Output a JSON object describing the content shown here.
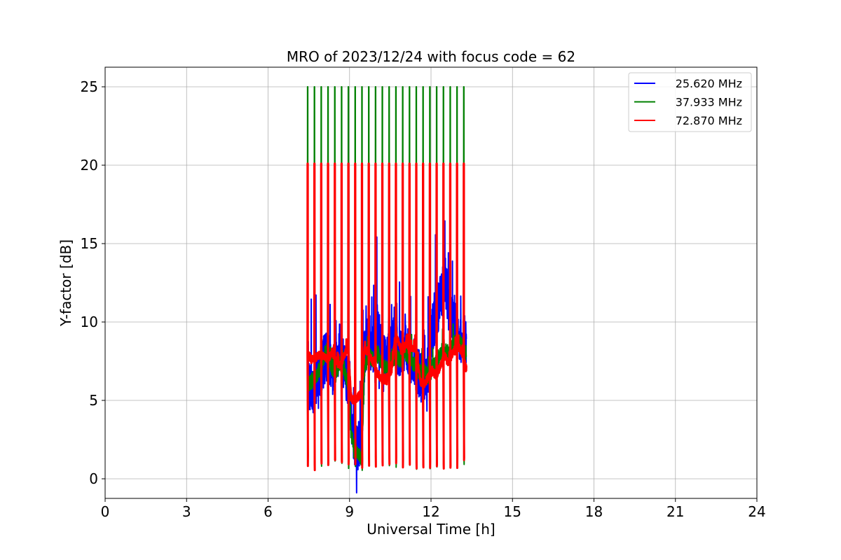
{
  "chart_data": {
    "type": "line",
    "title": "MRO of 2023/12/24 with focus code = 62",
    "xlabel": "Universal Time [h]",
    "ylabel": "Y-factor [dB]",
    "xlim": [
      0,
      24
    ],
    "ylim": [
      -1.25,
      26.25
    ],
    "xticks": [
      0,
      3,
      6,
      9,
      12,
      15,
      18,
      21,
      24
    ],
    "yticks": [
      0,
      5,
      10,
      15,
      20,
      25
    ],
    "grid": true,
    "legend_position": "top-right",
    "calibration": {
      "period_h": 0.25,
      "start_h": 7.45,
      "end_h": 13.3,
      "spike_peak_db": {
        "green": 25.0,
        "red": 20.1
      },
      "dip_db": 1.0
    },
    "series": [
      {
        "name": "25.620 MHz",
        "color": "#0000ff",
        "x": [
          7.45,
          7.5,
          7.6,
          7.75,
          7.9,
          8.0,
          8.2,
          8.35,
          8.5,
          8.65,
          8.8,
          8.95,
          9.05,
          9.15,
          9.3,
          9.45,
          9.55,
          9.7,
          9.85,
          10.0,
          10.2,
          10.4,
          10.55,
          10.7,
          10.9,
          11.1,
          11.3,
          11.45,
          11.6,
          11.75,
          11.9,
          12.05,
          12.2,
          12.35,
          12.5,
          12.65,
          12.8,
          12.95,
          13.1,
          13.3
        ],
        "y": [
          11.0,
          6.0,
          5.5,
          6.2,
          6.8,
          7.2,
          8.0,
          6.5,
          7.5,
          8.5,
          7.2,
          6.0,
          4.5,
          2.5,
          1.8,
          3.0,
          7.5,
          9.0,
          8.0,
          9.8,
          8.0,
          7.5,
          9.5,
          8.5,
          7.8,
          8.5,
          7.5,
          7.2,
          6.5,
          6.5,
          7.0,
          9.5,
          10.5,
          11.5,
          13.0,
          11.0,
          10.0,
          9.5,
          9.0,
          8.5
        ]
      },
      {
        "name": "37.933 MHz",
        "color": "#008000",
        "x": [
          7.45,
          7.6,
          7.75,
          7.9,
          8.05,
          8.2,
          8.35,
          8.5,
          8.65,
          8.8,
          8.95,
          9.05,
          9.15,
          9.3,
          9.45,
          9.55,
          9.7,
          9.85,
          10.0,
          10.2,
          10.4,
          10.55,
          10.7,
          10.9,
          11.1,
          11.3,
          11.45,
          11.6,
          11.75,
          11.9,
          12.05,
          12.2,
          12.35,
          12.5,
          12.65,
          12.8,
          12.95,
          13.1,
          13.3
        ],
        "y": [
          6.0,
          6.2,
          6.5,
          7.0,
          7.8,
          8.3,
          7.0,
          6.5,
          7.5,
          7.0,
          6.0,
          3.0,
          2.2,
          1.5,
          1.3,
          7.0,
          8.0,
          7.5,
          8.0,
          7.2,
          7.0,
          7.5,
          7.8,
          7.5,
          8.0,
          7.5,
          7.0,
          6.8,
          7.0,
          6.5,
          7.0,
          7.5,
          8.0,
          8.5,
          8.0,
          8.5,
          8.8,
          8.5,
          8.0
        ]
      },
      {
        "name": "72.870 MHz",
        "color": "#ff0000",
        "x": [
          7.45,
          7.6,
          7.75,
          7.9,
          8.05,
          8.2,
          8.35,
          8.5,
          8.65,
          8.8,
          8.95,
          9.05,
          9.15,
          9.3,
          9.45,
          9.55,
          9.7,
          9.85,
          10.0,
          10.2,
          10.4,
          10.55,
          10.7,
          10.9,
          11.1,
          11.3,
          11.45,
          11.6,
          11.75,
          11.9,
          12.05,
          12.2,
          12.35,
          12.5,
          12.65,
          12.8,
          12.95,
          13.1,
          13.3
        ],
        "y": [
          8.0,
          7.6,
          7.7,
          7.9,
          7.8,
          7.6,
          8.1,
          7.5,
          7.2,
          7.8,
          8.5,
          5.2,
          5.0,
          5.2,
          5.5,
          8.3,
          8.0,
          7.5,
          6.8,
          6.3,
          6.2,
          7.0,
          9.3,
          8.2,
          8.6,
          8.3,
          8.3,
          6.2,
          6.0,
          6.5,
          6.8,
          6.6,
          7.2,
          7.8,
          7.4,
          8.0,
          8.5,
          8.2,
          7.0
        ]
      }
    ]
  }
}
